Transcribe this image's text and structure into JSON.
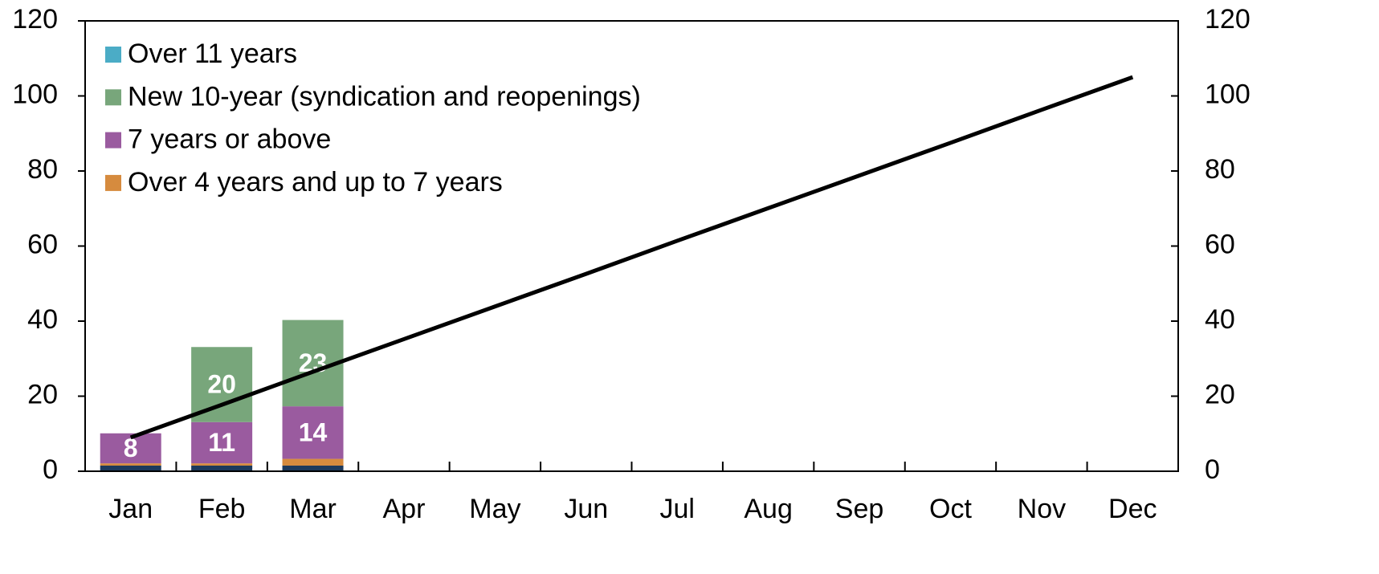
{
  "chart_data": {
    "type": "bar",
    "stacked": true,
    "categories": [
      "Jan",
      "Feb",
      "Mar",
      "Apr",
      "May",
      "Jun",
      "Jul",
      "Aug",
      "Sep",
      "Oct",
      "Nov",
      "Dec"
    ],
    "series": [
      {
        "name": "Over 11 years",
        "color": "#4bacc6",
        "values": [
          0,
          0,
          0,
          null,
          null,
          null,
          null,
          null,
          null,
          null,
          null,
          null
        ]
      },
      {
        "name": "New 10-year (syndication and reopenings)",
        "color": "#78a67b",
        "show_labels": true,
        "values": [
          null,
          20,
          23,
          null,
          null,
          null,
          null,
          null,
          null,
          null,
          null,
          null
        ]
      },
      {
        "name": "7 years or above",
        "color": "#9a5b9f",
        "show_labels": true,
        "values": [
          8,
          11,
          14,
          null,
          null,
          null,
          null,
          null,
          null,
          null,
          null,
          null
        ]
      },
      {
        "name": "Over 4 years and up to 7 years",
        "color": "#d68b3e",
        "values": [
          0.6,
          0.6,
          1.8,
          null,
          null,
          null,
          null,
          null,
          null,
          null,
          null,
          null
        ]
      },
      {
        "color": "#1d3a5c",
        "values": [
          1.5,
          1.5,
          1.5,
          null,
          null,
          null,
          null,
          null,
          null,
          null,
          null,
          null
        ]
      },
      {
        "type": "line",
        "axis": "y2",
        "color": "#000000",
        "values": [
          9,
          17.7,
          26.5,
          35.2,
          43.9,
          52.6,
          61.4,
          70.1,
          78.8,
          87.5,
          96.3,
          105
        ]
      }
    ],
    "ylim": [
      0,
      120
    ],
    "yticks": [
      0,
      20,
      40,
      60,
      80,
      100,
      120
    ],
    "y2lim": [
      0,
      120
    ],
    "y2ticks": [
      0,
      20,
      40,
      60,
      80,
      100,
      120
    ],
    "legend": "upper left"
  }
}
